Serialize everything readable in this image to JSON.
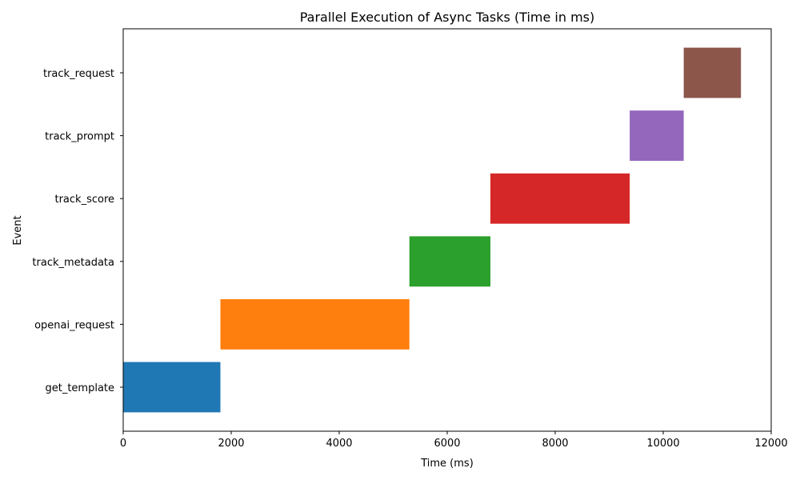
{
  "chart_data": {
    "type": "bar",
    "orientation": "horizontal-gantt",
    "title": "Parallel Execution of Async Tasks (Time in ms)",
    "xlabel": "Time (ms)",
    "ylabel": "Event",
    "xlim": [
      0,
      12000
    ],
    "xticks": [
      0,
      2000,
      4000,
      6000,
      8000,
      10000,
      12000
    ],
    "grid": false,
    "legend": "none",
    "tasks": [
      {
        "label": "get_template",
        "start": 0,
        "end": 1800,
        "color": "#1f77b4"
      },
      {
        "label": "openai_request",
        "start": 1800,
        "end": 5300,
        "color": "#ff7f0e"
      },
      {
        "label": "track_metadata",
        "start": 5300,
        "end": 6800,
        "color": "#2ca02c"
      },
      {
        "label": "track_score",
        "start": 6800,
        "end": 9380,
        "color": "#d62728"
      },
      {
        "label": "track_prompt",
        "start": 9380,
        "end": 10380,
        "color": "#9467bd"
      },
      {
        "label": "track_request",
        "start": 10380,
        "end": 11440,
        "color": "#8c564b"
      }
    ]
  }
}
